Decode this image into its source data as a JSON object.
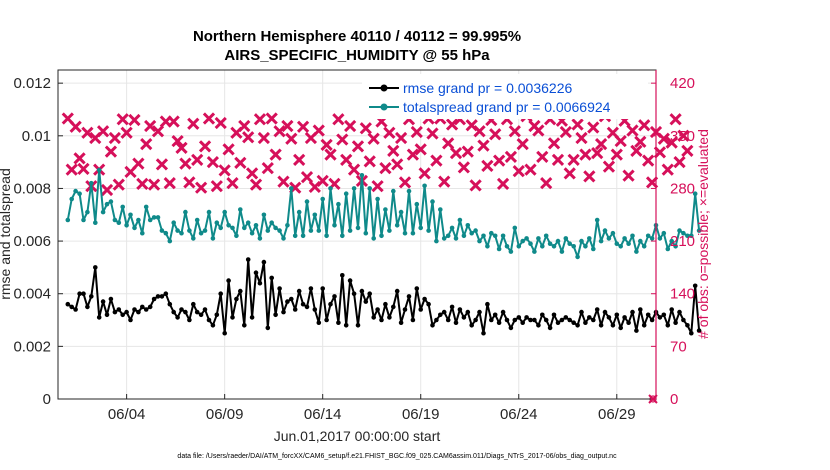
{
  "chart_data": {
    "type": "line",
    "title": "Northern Hemisphere 40110 / 40112 = 99.995%",
    "subtitle": "AIRS_SPECIFIC_HUMIDITY @ 55 hPa",
    "xlabel": "Jun.01,2017 00:00:00 start",
    "ylabel": "rmse and totalspread",
    "y2label": "# of obs: o=possible; ×=evaluated",
    "xlim": [
      0.5,
      31.0
    ],
    "ylim": [
      0,
      0.0125
    ],
    "y2lim": [
      0,
      437.5
    ],
    "x_ticks": [
      {
        "x": 4,
        "label": "06/04"
      },
      {
        "x": 9,
        "label": "06/09"
      },
      {
        "x": 14,
        "label": "06/14"
      },
      {
        "x": 19,
        "label": "06/19"
      },
      {
        "x": 24,
        "label": "06/24"
      },
      {
        "x": 29,
        "label": "06/29"
      }
    ],
    "y_ticks": [
      "0",
      "0.002",
      "0.004",
      "0.006",
      "0.008",
      "0.01",
      "0.012"
    ],
    "y2_ticks": [
      "0",
      "70",
      "140",
      "210",
      "280",
      "350",
      "420"
    ],
    "grid": true,
    "legend_position": "top-right",
    "footer": "data file: /Users/raeder/DAI/ATM_forcXX/CAM6_setup/f.e21.FHIST_BGC.f09_025.CAM6assim.011/Diags_NTrS_2017-06/obs_diag_output.nc",
    "colors": {
      "rmse": "#000000",
      "spread": "#0f8a8a",
      "obs": "#d6105a",
      "legend_text": "#0a4fd6"
    },
    "series": [
      {
        "name": "rmse grand pr = 0.0036226",
        "axis": "left",
        "values": [
          0.0036,
          0.0035,
          0.0034,
          0.004,
          0.004,
          0.0035,
          0.0039,
          0.005,
          0.0031,
          0.0037,
          0.0032,
          0.0038,
          0.0033,
          0.0034,
          0.0032,
          0.0033,
          0.003,
          0.0034,
          0.0033,
          0.0035,
          0.0034,
          0.0035,
          0.0038,
          0.0039,
          0.0039,
          0.004,
          0.0036,
          0.0033,
          0.0031,
          0.0034,
          0.0033,
          0.003,
          0.0036,
          0.0033,
          0.0032,
          0.0034,
          0.003,
          0.0028,
          0.0032,
          0.004,
          0.0025,
          0.0045,
          0.0031,
          0.0038,
          0.0041,
          0.0028,
          0.0053,
          0.0031,
          0.0048,
          0.0044,
          0.0052,
          0.0027,
          0.0046,
          0.0032,
          0.0042,
          0.0033,
          0.0037,
          0.0038,
          0.0034,
          0.0041,
          0.0036,
          0.0035,
          0.0042,
          0.0034,
          0.0029,
          0.0042,
          0.003,
          0.0036,
          0.0039,
          0.0029,
          0.0047,
          0.0028,
          0.0045,
          0.004,
          0.0028,
          0.0041,
          0.0037,
          0.004,
          0.0031,
          0.0034,
          0.003,
          0.0036,
          0.0031,
          0.0035,
          0.0041,
          0.0029,
          0.0034,
          0.0039,
          0.003,
          0.0042,
          0.0034,
          0.0038,
          0.0036,
          0.0028,
          0.003,
          0.0032,
          0.0033,
          0.003,
          0.0035,
          0.0029,
          0.0034,
          0.0031,
          0.0033,
          0.0028,
          0.003,
          0.0033,
          0.0025,
          0.0036,
          0.003,
          0.0032,
          0.0029,
          0.0033,
          0.003,
          0.0027,
          0.003,
          0.0031,
          0.0029,
          0.0031,
          0.003,
          0.003,
          0.0028,
          0.0032,
          0.003,
          0.0027,
          0.0032,
          0.0029,
          0.003,
          0.0031,
          0.003,
          0.0029,
          0.0028,
          0.0033,
          0.0029,
          0.0031,
          0.003,
          0.0034,
          0.0028,
          0.0033,
          0.0031,
          0.0028,
          0.0032,
          0.0027,
          0.0031,
          0.0029,
          0.0033,
          0.0026,
          0.0034,
          0.0028,
          0.0032,
          0.003,
          0.0033,
          0.0031,
          0.0032,
          0.0028,
          0.0034,
          0.0029,
          0.0033,
          0.003,
          0.0028,
          0.0025,
          0.0043,
          0.0026
        ]
      },
      {
        "name": "totalspread grand pr = 0.0066924",
        "axis": "left",
        "values": [
          0.0068,
          0.0076,
          0.0079,
          0.0078,
          0.0068,
          0.0071,
          0.0082,
          0.0067,
          0.0087,
          0.0071,
          0.0074,
          0.0075,
          0.0068,
          0.0067,
          0.0073,
          0.0066,
          0.007,
          0.0065,
          0.0068,
          0.0063,
          0.0073,
          0.0068,
          0.0069,
          0.0069,
          0.0064,
          0.0063,
          0.006,
          0.0067,
          0.0064,
          0.0063,
          0.0071,
          0.0064,
          0.0061,
          0.0068,
          0.0063,
          0.0064,
          0.0071,
          0.0061,
          0.0067,
          0.0065,
          0.0071,
          0.0066,
          0.0065,
          0.0062,
          0.0072,
          0.0065,
          0.0067,
          0.0063,
          0.0066,
          0.0061,
          0.007,
          0.0064,
          0.0067,
          0.0065,
          0.0064,
          0.0061,
          0.0066,
          0.008,
          0.0062,
          0.0071,
          0.0062,
          0.0075,
          0.0064,
          0.007,
          0.0064,
          0.0076,
          0.0062,
          0.008,
          0.0066,
          0.0074,
          0.0062,
          0.0078,
          0.0064,
          0.008,
          0.0065,
          0.0085,
          0.0063,
          0.008,
          0.0061,
          0.0076,
          0.0062,
          0.0072,
          0.0064,
          0.0079,
          0.0066,
          0.0071,
          0.0063,
          0.0079,
          0.0063,
          0.0074,
          0.0065,
          0.0081,
          0.0064,
          0.0075,
          0.006,
          0.0072,
          0.0061,
          0.0062,
          0.0065,
          0.0061,
          0.0068,
          0.0062,
          0.0066,
          0.0063,
          0.0064,
          0.006,
          0.0062,
          0.0058,
          0.0063,
          0.0062,
          0.0057,
          0.0062,
          0.0058,
          0.0056,
          0.0065,
          0.0058,
          0.006,
          0.0061,
          0.0059,
          0.0056,
          0.0061,
          0.0058,
          0.0062,
          0.0059,
          0.0058,
          0.006,
          0.0056,
          0.0061,
          0.0059,
          0.0058,
          0.0054,
          0.006,
          0.0058,
          0.0061,
          0.0057,
          0.0068,
          0.006,
          0.0064,
          0.0061,
          0.0063,
          0.0059,
          0.0058,
          0.0061,
          0.0059,
          0.0062,
          0.0056,
          0.006,
          0.0058,
          0.0062,
          0.0061,
          0.0066,
          0.0061,
          0.0063,
          0.0057,
          0.006,
          0.0058,
          0.0064,
          0.0063,
          0.0062,
          0.0062,
          0.0078,
          0.0064
        ]
      },
      {
        "name": "obs possible",
        "axis": "right",
        "marker": "o",
        "values": []
      },
      {
        "name": "obs evaluated",
        "axis": "right",
        "marker": "×",
        "values": [
          373,
          305,
          362,
          320,
          306,
          354,
          283,
          347,
          305,
          356,
          278,
          329,
          347,
          285,
          372,
          354,
          302,
          371,
          313,
          286,
          339,
          363,
          285,
          356,
          312,
          369,
          287,
          369,
          343,
          334,
          313,
          288,
          366,
          318,
          281,
          336,
          373,
          315,
          283,
          367,
          304,
          332,
          287,
          354,
          314,
          363,
          348,
          300,
          285,
          372,
          347,
          307,
          373,
          325,
          356,
          289,
          363,
          346,
          281,
          318,
          362,
          295,
          347,
          282,
          357,
          290,
          338,
          325,
          286,
          372,
          345,
          318,
          363,
          305,
          336,
          290,
          360,
          316,
          346,
          283,
          369,
          307,
          354,
          330,
          312,
          347,
          288,
          372,
          325,
          355,
          332,
          300,
          373,
          353,
          317,
          373,
          289,
          340,
          365,
          327,
          372,
          308,
          329,
          364,
          284,
          356,
          337,
          310,
          371,
          352,
          317,
          286,
          372,
          322,
          356,
          303,
          339,
          376,
          305,
          363,
          357,
          322,
          287,
          372,
          340,
          318,
          370,
          355,
          300,
          318,
          365,
          347,
          325,
          296,
          361,
          327,
          339,
          376,
          309,
          354,
          325,
          343,
          370,
          297,
          357,
          330,
          342,
          364,
          317,
          288,
          355,
          328,
          346,
          305,
          341,
          372,
          315,
          350,
          330
        ]
      }
    ]
  }
}
